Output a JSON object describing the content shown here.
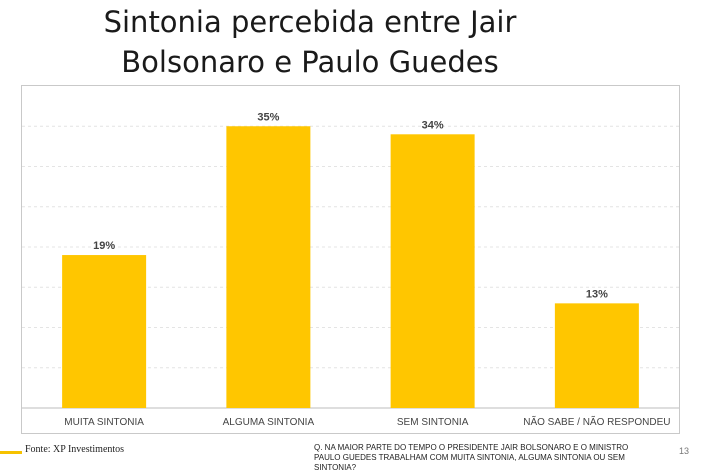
{
  "title_line1": "Sintonia percebida entre Jair",
  "title_line2": "Bolsonaro e Paulo Guedes",
  "footer": {
    "source": "Fonte: XP Investimentos",
    "question": "Q. NA MAIOR PARTE DO TEMPO O PRESIDENTE JAIR BOLSONARO E O MINISTRO PAULO GUEDES TRABALHAM COM MUITA SINTONIA, ALGUMA SINTONIA OU SEM SINTONIA?",
    "page_number": "13"
  },
  "chart_data": {
    "type": "bar",
    "title": "Sintonia percebida entre Jair Bolsonaro e Paulo Guedes",
    "categories": [
      "MUITA SINTONIA",
      "ALGUMA SINTONIA",
      "SEM SINTONIA",
      "NÃO SABE / NÃO RESPONDEU"
    ],
    "values": [
      19,
      35,
      34,
      13
    ],
    "data_labels": [
      "19%",
      "35%",
      "34%",
      "13%"
    ],
    "ylim": [
      0,
      40
    ],
    "grid": true,
    "bar_color": "#ffc600"
  }
}
